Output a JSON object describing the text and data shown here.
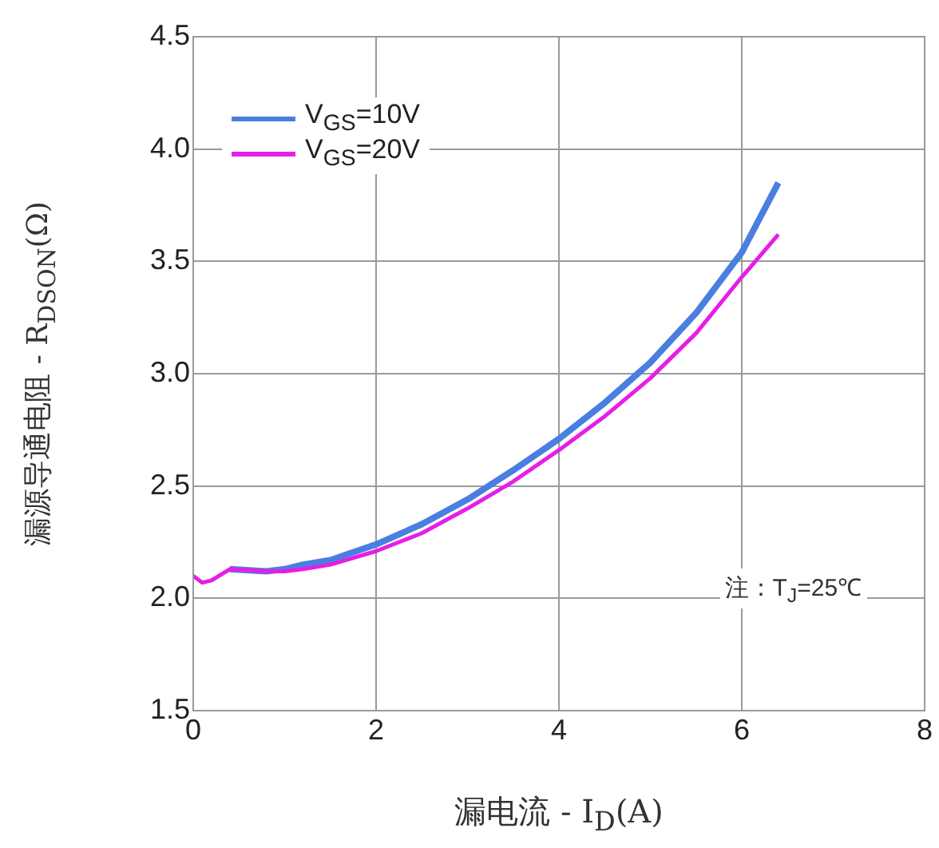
{
  "chart_data": {
    "type": "line",
    "xlabel": "漏电流 - I$_{D}$(A)",
    "ylabel": "漏源导通电阻 - R$_{DSON}$(Ω)",
    "x": [
      0,
      0.1,
      0.2,
      0.4,
      0.8,
      1.0,
      1.2,
      1.5,
      2,
      2.5,
      3,
      3.5,
      4,
      4.5,
      5,
      5.5,
      6,
      6.4
    ],
    "series": [
      {
        "name": "V$_{GS}$=10V",
        "color": "#4a7fe0",
        "values": [
          null,
          null,
          null,
          2.13,
          2.12,
          2.13,
          2.15,
          2.17,
          2.24,
          2.33,
          2.44,
          2.57,
          2.71,
          2.87,
          3.05,
          3.27,
          3.54,
          3.85
        ]
      },
      {
        "name": "V$_{GS}$=20V",
        "color": "#e61ee6",
        "values": [
          2.1,
          2.07,
          2.08,
          2.13,
          2.12,
          2.12,
          2.13,
          2.15,
          2.21,
          2.29,
          2.4,
          2.52,
          2.66,
          2.81,
          2.98,
          3.18,
          3.43,
          3.62
        ]
      }
    ],
    "xlim": [
      0,
      8
    ],
    "xticks": [
      0,
      2,
      4,
      6,
      8
    ],
    "ylim": [
      1.5,
      4.5
    ],
    "yticks": [
      1.5,
      {
        "value": 2,
        "label": "2.0"
      },
      2.5,
      {
        "value": 3,
        "label": "3.0"
      },
      3.5,
      {
        "value": 4,
        "label": "4.0"
      },
      4.5
    ],
    "grid": true,
    "legend": "top left",
    "marker": "none",
    "line_style": "solid",
    "annotations": [
      "注：T$_{J}$=25℃"
    ]
  }
}
